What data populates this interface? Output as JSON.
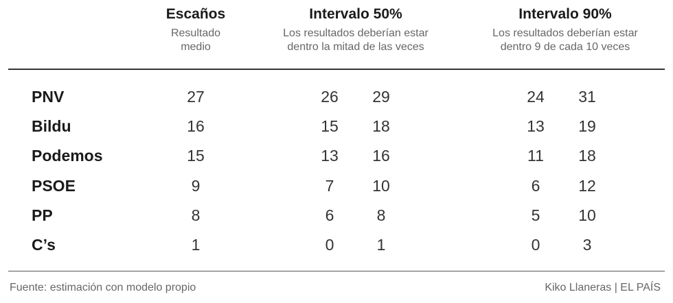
{
  "chart_data": {
    "type": "table",
    "columns": [
      {
        "title": "Escaños",
        "subtitle_lines": [
          "Resultado",
          "medio"
        ]
      },
      {
        "title": "Intervalo 50%",
        "subtitle_lines": [
          "Los resultados deberían estar",
          "dentro la mitad de las veces"
        ]
      },
      {
        "title": "Intervalo 90%",
        "subtitle_lines": [
          "Los resultados deberían estar",
          "dentro 9 de cada 10 veces"
        ]
      }
    ],
    "rows": [
      {
        "party": "PNV",
        "seats": 27,
        "interval_50": [
          26,
          29
        ],
        "interval_90": [
          24,
          31
        ]
      },
      {
        "party": "Bildu",
        "seats": 16,
        "interval_50": [
          15,
          18
        ],
        "interval_90": [
          13,
          19
        ]
      },
      {
        "party": "Podemos",
        "seats": 15,
        "interval_50": [
          13,
          16
        ],
        "interval_90": [
          11,
          18
        ]
      },
      {
        "party": "PSOE",
        "seats": 9,
        "interval_50": [
          7,
          10
        ],
        "interval_90": [
          6,
          12
        ]
      },
      {
        "party": "PP",
        "seats": 8,
        "interval_50": [
          6,
          8
        ],
        "interval_90": [
          5,
          10
        ]
      },
      {
        "party": "C’s",
        "seats": 1,
        "interval_50": [
          0,
          1
        ],
        "interval_90": [
          0,
          3
        ]
      }
    ]
  },
  "footer": {
    "source": "Fuente: estimación con modelo propio",
    "credit": "Kiko Llaneras | EL PAÍS"
  }
}
